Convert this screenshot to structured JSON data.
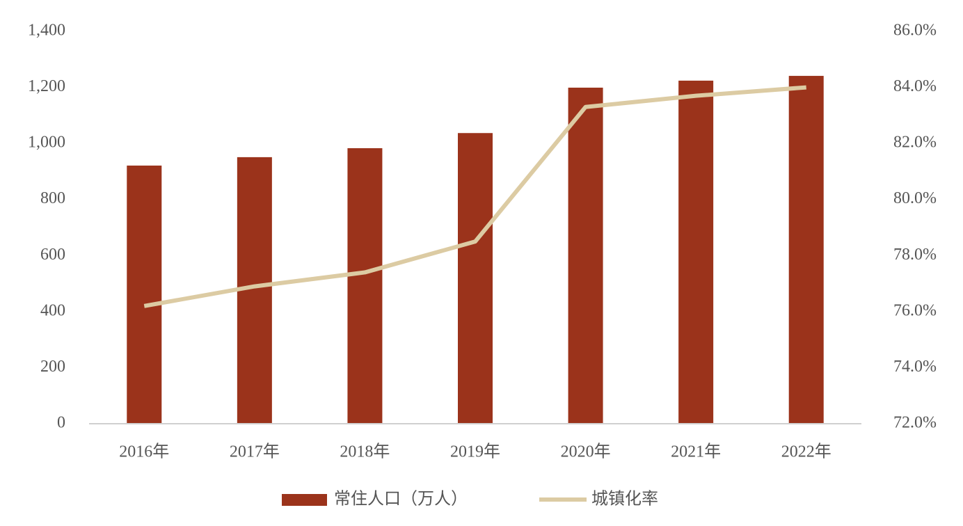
{
  "chart_data": {
    "type": "bar-line",
    "categories": [
      "2016年",
      "2017年",
      "2018年",
      "2019年",
      "2020年",
      "2021年",
      "2022年"
    ],
    "series": [
      {
        "name": "常住人口（万人）",
        "type": "bar",
        "color": "#9b331b",
        "values": [
          921,
          951,
          983,
          1037,
          1199,
          1224,
          1241
        ]
      },
      {
        "name": "城镇化率",
        "type": "line",
        "axis": "y2",
        "color": "#dccba3",
        "values": [
          76.2,
          76.9,
          77.4,
          78.5,
          83.3,
          83.7,
          84.0
        ]
      }
    ],
    "ylim": [
      0,
      1400
    ],
    "yticks": [
      0,
      200,
      400,
      600,
      800,
      {
        "value": 1000,
        "label": "1,000"
      },
      {
        "value": 1200,
        "label": "1,200"
      },
      {
        "value": 1400,
        "label": "1,400"
      }
    ],
    "y2lim": [
      72,
      86
    ],
    "y2ticks": [
      {
        "value": 72,
        "label": "72.0%"
      },
      {
        "value": 74,
        "label": "74.0%"
      },
      {
        "value": 76,
        "label": "76.0%"
      },
      {
        "value": 78,
        "label": "78.0%"
      },
      {
        "value": 80,
        "label": "80.0%"
      },
      {
        "value": 82,
        "label": "82.0%"
      },
      {
        "value": 84,
        "label": "84.0%"
      },
      {
        "value": 86,
        "label": "86.0%"
      }
    ],
    "grid": false,
    "legend": "bottom"
  }
}
